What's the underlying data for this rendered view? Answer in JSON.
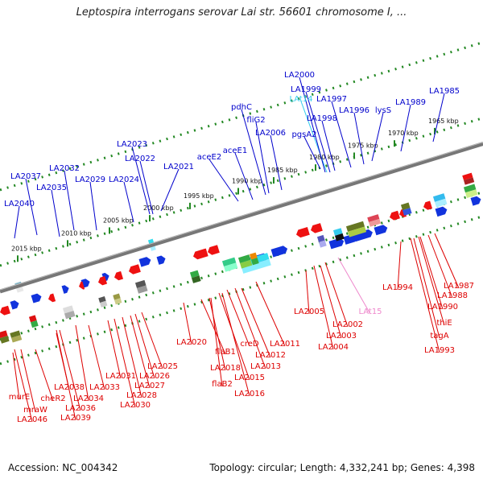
{
  "title": "Leptospira interrogans serovar Lai str. 56601 chromosome I, ...",
  "footer": {
    "accession": "Accession: NC_004342",
    "topology": "Topology: circular; Length: 4,332,241 bp; Genes: 4,398"
  },
  "colors": {
    "plus_label": "#0000cc",
    "minus_label": "#dd0000",
    "trna_plus": "#33ccee",
    "trna_minus": "#ee88cc",
    "backbone": "#777777",
    "tick": "#228822"
  },
  "scale_ticks": [
    "2015 kbp",
    "2010 kbp",
    "2005 kbp",
    "2000 kbp",
    "1995 kbp",
    "1990 kbp",
    "1985 kbp",
    "1980 kbp",
    "1975 kbp",
    "1970 kbp",
    "1965 kbp"
  ],
  "plus_labels": [
    "LA2040",
    "LA2037",
    "LA2035",
    "LA2032",
    "LA2029",
    "LA2024",
    "LA2023",
    "LA2022",
    "LA2021",
    "aceE2",
    "aceE1",
    "pdhC",
    "fliG2",
    "LA2006",
    "pgsA2",
    "LAt14",
    "LA1998",
    "LA2000",
    "LA1999",
    "LA1997",
    "LA1996",
    "lysS",
    "LA1989",
    "LA1985"
  ],
  "minus_labels": [
    "murE",
    "mraW",
    "LA2046",
    "cheR2",
    "LA2038",
    "LA2036",
    "LA2039",
    "LA2034",
    "LA2033",
    "LA2031",
    "LA2030",
    "LA2028",
    "LA2027",
    "LA2026",
    "LA2025",
    "LA2020",
    "flaB1",
    "LA2018",
    "flaB2",
    "creD",
    "LA2015",
    "LA2016",
    "LA2013",
    "LA2012",
    "LA2011",
    "LA2005",
    "LA2003",
    "LA2004",
    "LA2002",
    "LAt15",
    "LA1994",
    "LA1993",
    "tagA",
    "thiE",
    "LA1990",
    "LA1988",
    "LA1987"
  ]
}
